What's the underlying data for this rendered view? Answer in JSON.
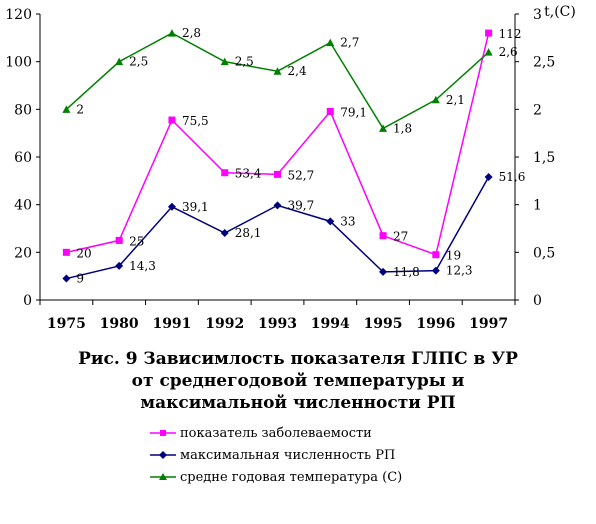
{
  "chart_data": {
    "type": "line",
    "categories": [
      "1975",
      "1980",
      "1991",
      "1992",
      "1993",
      "1994",
      "1995",
      "1996",
      "1997"
    ],
    "y_left": {
      "range": [
        0,
        120
      ],
      "ticks": [
        "0",
        "20",
        "40",
        "60",
        "80",
        "100",
        "120"
      ]
    },
    "y_right": {
      "label": "t,(C)",
      "range": [
        0,
        3
      ],
      "ticks": [
        "0",
        "0,5",
        "1",
        "1,5",
        "2",
        "2,5",
        "3"
      ]
    },
    "series": [
      {
        "name": "показатель заболеваемости",
        "axis": "left",
        "color": "#ff00ff",
        "marker": "square",
        "values": [
          20,
          25,
          75.5,
          53.4,
          52.7,
          79.1,
          27,
          19,
          112
        ],
        "labels": [
          "20",
          "25",
          "75,5",
          "53,4",
          "52,7",
          "79,1",
          "27",
          "19",
          "112"
        ]
      },
      {
        "name": "максимальная численность РП",
        "axis": "left",
        "color": "#000080",
        "marker": "diamond",
        "values": [
          9,
          14.3,
          39.1,
          28.1,
          39.7,
          33,
          11.8,
          12.3,
          51.6
        ],
        "labels": [
          "9",
          "14,3",
          "39,1",
          "28,1",
          "39,7",
          "33",
          "11,8",
          "12,3",
          "51,6"
        ]
      },
      {
        "name": "средне годовая температура (С)",
        "axis": "right",
        "color": "#008000",
        "marker": "triangle",
        "values": [
          2,
          2.5,
          2.8,
          2.5,
          2.4,
          2.7,
          1.8,
          2.1,
          2.6
        ],
        "labels": [
          "2",
          "2,5",
          "2,8",
          "2,5",
          "2,4",
          "2,7",
          "1,8",
          "2,1",
          "2,6"
        ]
      }
    ]
  },
  "caption": {
    "line1": "Рис. 9  Зависимлость показателя ГЛПС в УР",
    "line2": "от среднегодовой температуры и",
    "line3": "максимальной численности РП"
  }
}
